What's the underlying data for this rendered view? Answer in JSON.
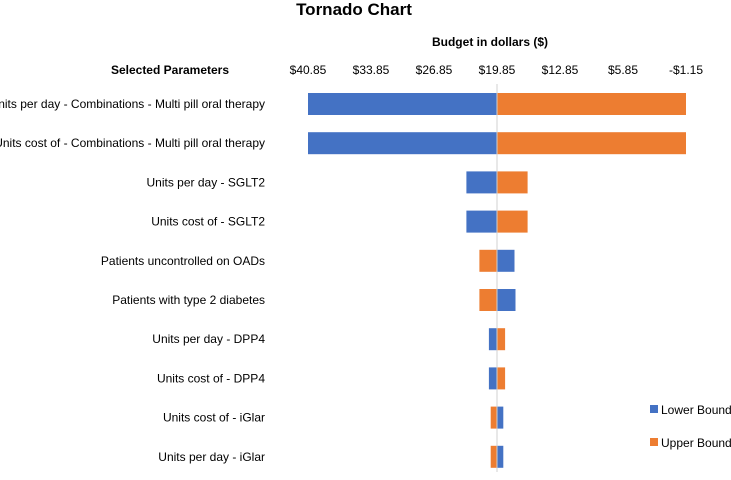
{
  "chart_data": {
    "type": "bar",
    "subtype": "tornado",
    "title": "Tornado Chart",
    "xlabel": "Budget in dollars ($)",
    "ylabel": "Selected Parameters",
    "x_axis_reversed": true,
    "xlim": [
      40.85,
      -1.15
    ],
    "center": 19.85,
    "x_ticks": [
      40.85,
      33.85,
      26.85,
      19.85,
      12.85,
      5.85,
      -1.15
    ],
    "x_tick_labels": [
      "$40.85",
      "$33.85",
      "$26.85",
      "$19.85",
      "$12.85",
      "$5.85",
      "-$1.15"
    ],
    "categories": [
      "Units per day - Combinations - Multi pill oral therapy",
      "Units cost of - Combinations - Multi pill oral therapy",
      "Units per day - SGLT2",
      "Units cost of - SGLT2",
      "Patients uncontrolled on OADs",
      "Patients with type 2 diabetes",
      "Units per day - DPP4",
      "Units cost of - DPP4",
      "Units cost of - iGlar",
      "Units per day - iGlar"
    ],
    "series": [
      {
        "name": "Lower Bound",
        "color": "#4472C4",
        "values": [
          40.85,
          40.85,
          23.25,
          23.25,
          17.9,
          17.8,
          20.75,
          20.75,
          19.15,
          19.15
        ]
      },
      {
        "name": "Upper Bound",
        "color": "#ED7D31",
        "values": [
          -1.15,
          -1.15,
          16.45,
          16.45,
          21.8,
          21.8,
          18.95,
          18.95,
          20.55,
          20.55
        ]
      }
    ],
    "legend_position": "right"
  }
}
